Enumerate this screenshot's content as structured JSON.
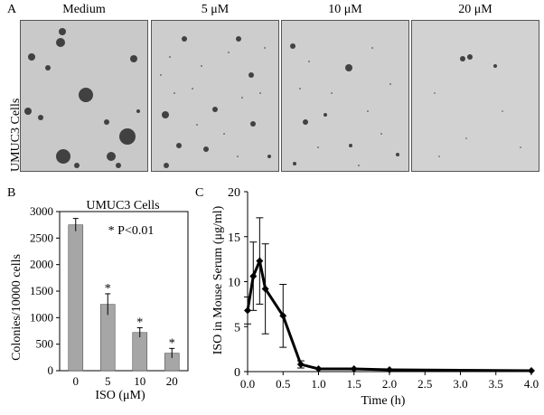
{
  "panel_a": {
    "letter": "A",
    "row_label": "UMUC3 Cells",
    "conditions": [
      {
        "title": "Medium"
      },
      {
        "title": "5 μM"
      },
      {
        "title": "10 μM"
      },
      {
        "title": "20 μM"
      }
    ]
  },
  "panel_b": {
    "letter": "B"
  },
  "panel_c": {
    "letter": "C"
  },
  "colors": {
    "bar": "#a6a6a6",
    "line": "#000000",
    "background": "#ffffff",
    "micrograph": "#c9c9c9"
  },
  "chart_data": [
    {
      "type": "bar",
      "title": "UMUC3 Cells",
      "annotation": "* P<0.01",
      "xlabel": "ISO (μM)",
      "ylabel": "Colonies/10000 cells",
      "categories": [
        "0",
        "5",
        "10",
        "20"
      ],
      "values": [
        2750,
        1250,
        720,
        330
      ],
      "errors": [
        120,
        200,
        90,
        90
      ],
      "significance": [
        "",
        "*",
        "*",
        "*"
      ],
      "ylim": [
        0,
        3000
      ],
      "yticks": [
        "0",
        "500",
        "1000",
        "1500",
        "2000",
        "2500",
        "3000"
      ],
      "grid": false
    },
    {
      "type": "line",
      "xlabel": "Time (h)",
      "ylabel": "ISO in Mouse Serum (μg/ml)",
      "x": [
        0.0,
        0.08,
        0.17,
        0.25,
        0.5,
        0.75,
        1.0,
        1.5,
        2.0,
        4.0
      ],
      "y": [
        6.8,
        10.6,
        12.3,
        9.2,
        6.2,
        0.8,
        0.3,
        0.3,
        0.2,
        0.1
      ],
      "yerr": [
        1.5,
        3.8,
        4.8,
        5.0,
        3.5,
        0.4,
        0.15,
        0.1,
        0.1,
        0.05
      ],
      "xlim": [
        0,
        4.0
      ],
      "ylim": [
        0,
        20
      ],
      "xticks": [
        "0.0",
        "0.5",
        "1.0",
        "1.5",
        "2.0",
        "2.5",
        "3.0",
        "3.5",
        "4.0"
      ],
      "yticks": [
        "0",
        "5",
        "10",
        "15",
        "20"
      ],
      "grid": false
    }
  ]
}
